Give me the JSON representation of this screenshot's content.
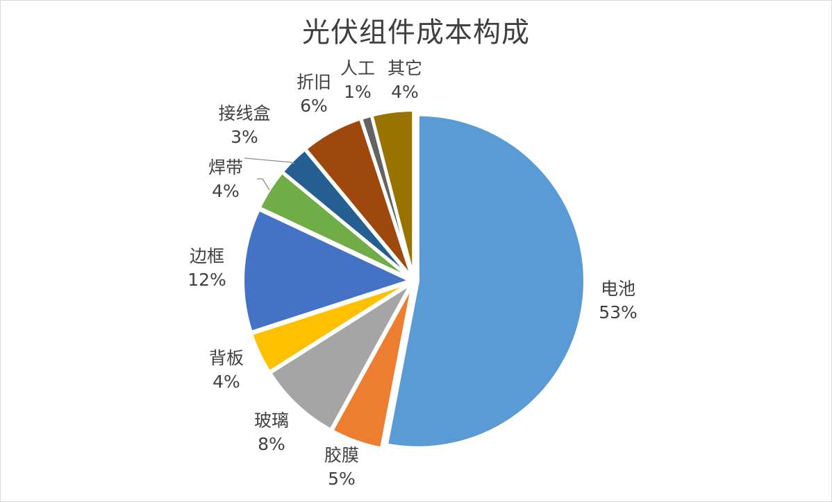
{
  "chart_data": {
    "type": "pie",
    "title": "光伏组件成本构成",
    "slices": [
      {
        "label": "电池",
        "percent_label": "53%",
        "value": 53,
        "color": "#5B9BD5"
      },
      {
        "label": "胶膜",
        "percent_label": "5%",
        "value": 5,
        "color": "#ED7D31"
      },
      {
        "label": "玻璃",
        "percent_label": "8%",
        "value": 8,
        "color": "#A5A5A5"
      },
      {
        "label": "背板",
        "percent_label": "4%",
        "value": 4,
        "color": "#FFC000"
      },
      {
        "label": "边框",
        "percent_label": "12%",
        "value": 12,
        "color": "#4472C4"
      },
      {
        "label": "焊带",
        "percent_label": "4%",
        "value": 4,
        "color": "#70AD47"
      },
      {
        "label": "接线盒",
        "percent_label": "3%",
        "value": 3,
        "color": "#255E91"
      },
      {
        "label": "折旧",
        "percent_label": "6%",
        "value": 6,
        "color": "#9E480E"
      },
      {
        "label": "人工",
        "percent_label": "1%",
        "value": 1,
        "color": "#636363"
      },
      {
        "label": "其它",
        "percent_label": "4%",
        "value": 4,
        "color": "#997300"
      }
    ],
    "start_angle": "12 o'clock",
    "direction": "clockwise",
    "legend": "none",
    "data_labels": "outside"
  }
}
